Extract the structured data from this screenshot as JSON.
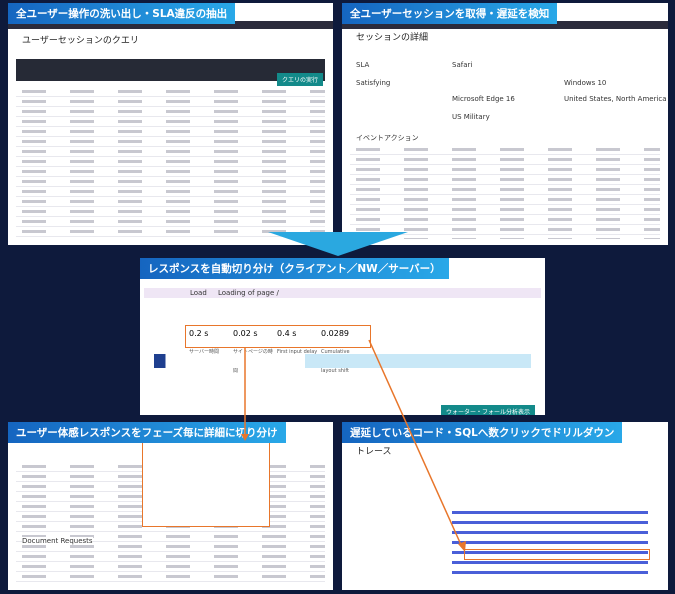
{
  "panels": [
    {
      "title": "全ユーザー操作の洗い出し・SLA違反の抽出",
      "heading": "ユーザーセッションのクエリ",
      "button": "クエリの実行"
    },
    {
      "title": "全ユーザーセッションを取得・遅延を検知",
      "heading": "セッションの詳細",
      "items": [
        "SLA",
        "Safari",
        "Windows 10",
        "Satisfying",
        "Microsoft Edge 16",
        "United States, North America",
        "US Military"
      ],
      "section": "イベントアクション"
    },
    {
      "title": "レスポンスを自動切り分け（クライアント／NW／サーバー）",
      "row": [
        "Load",
        "Loading of page /"
      ],
      "metrics": [
        {
          "value": "0.2 s",
          "label": "サーバー時間"
        },
        {
          "value": "0.02 s",
          "label": "サイトページの時間"
        },
        {
          "value": "0.4 s",
          "label": "First input delay"
        },
        {
          "value": "0.0289",
          "label": "Cumulative layout shift"
        }
      ],
      "button": "ウォーター・フォール分析表示"
    },
    {
      "title": "ユーザー体感レスポンスをフェーズ毎に詳細に切り分け",
      "section": "Document Requests"
    },
    {
      "title": "遅延しているコード・SQLへ数クリックでドリルダウン",
      "heading": "トレース"
    }
  ]
}
